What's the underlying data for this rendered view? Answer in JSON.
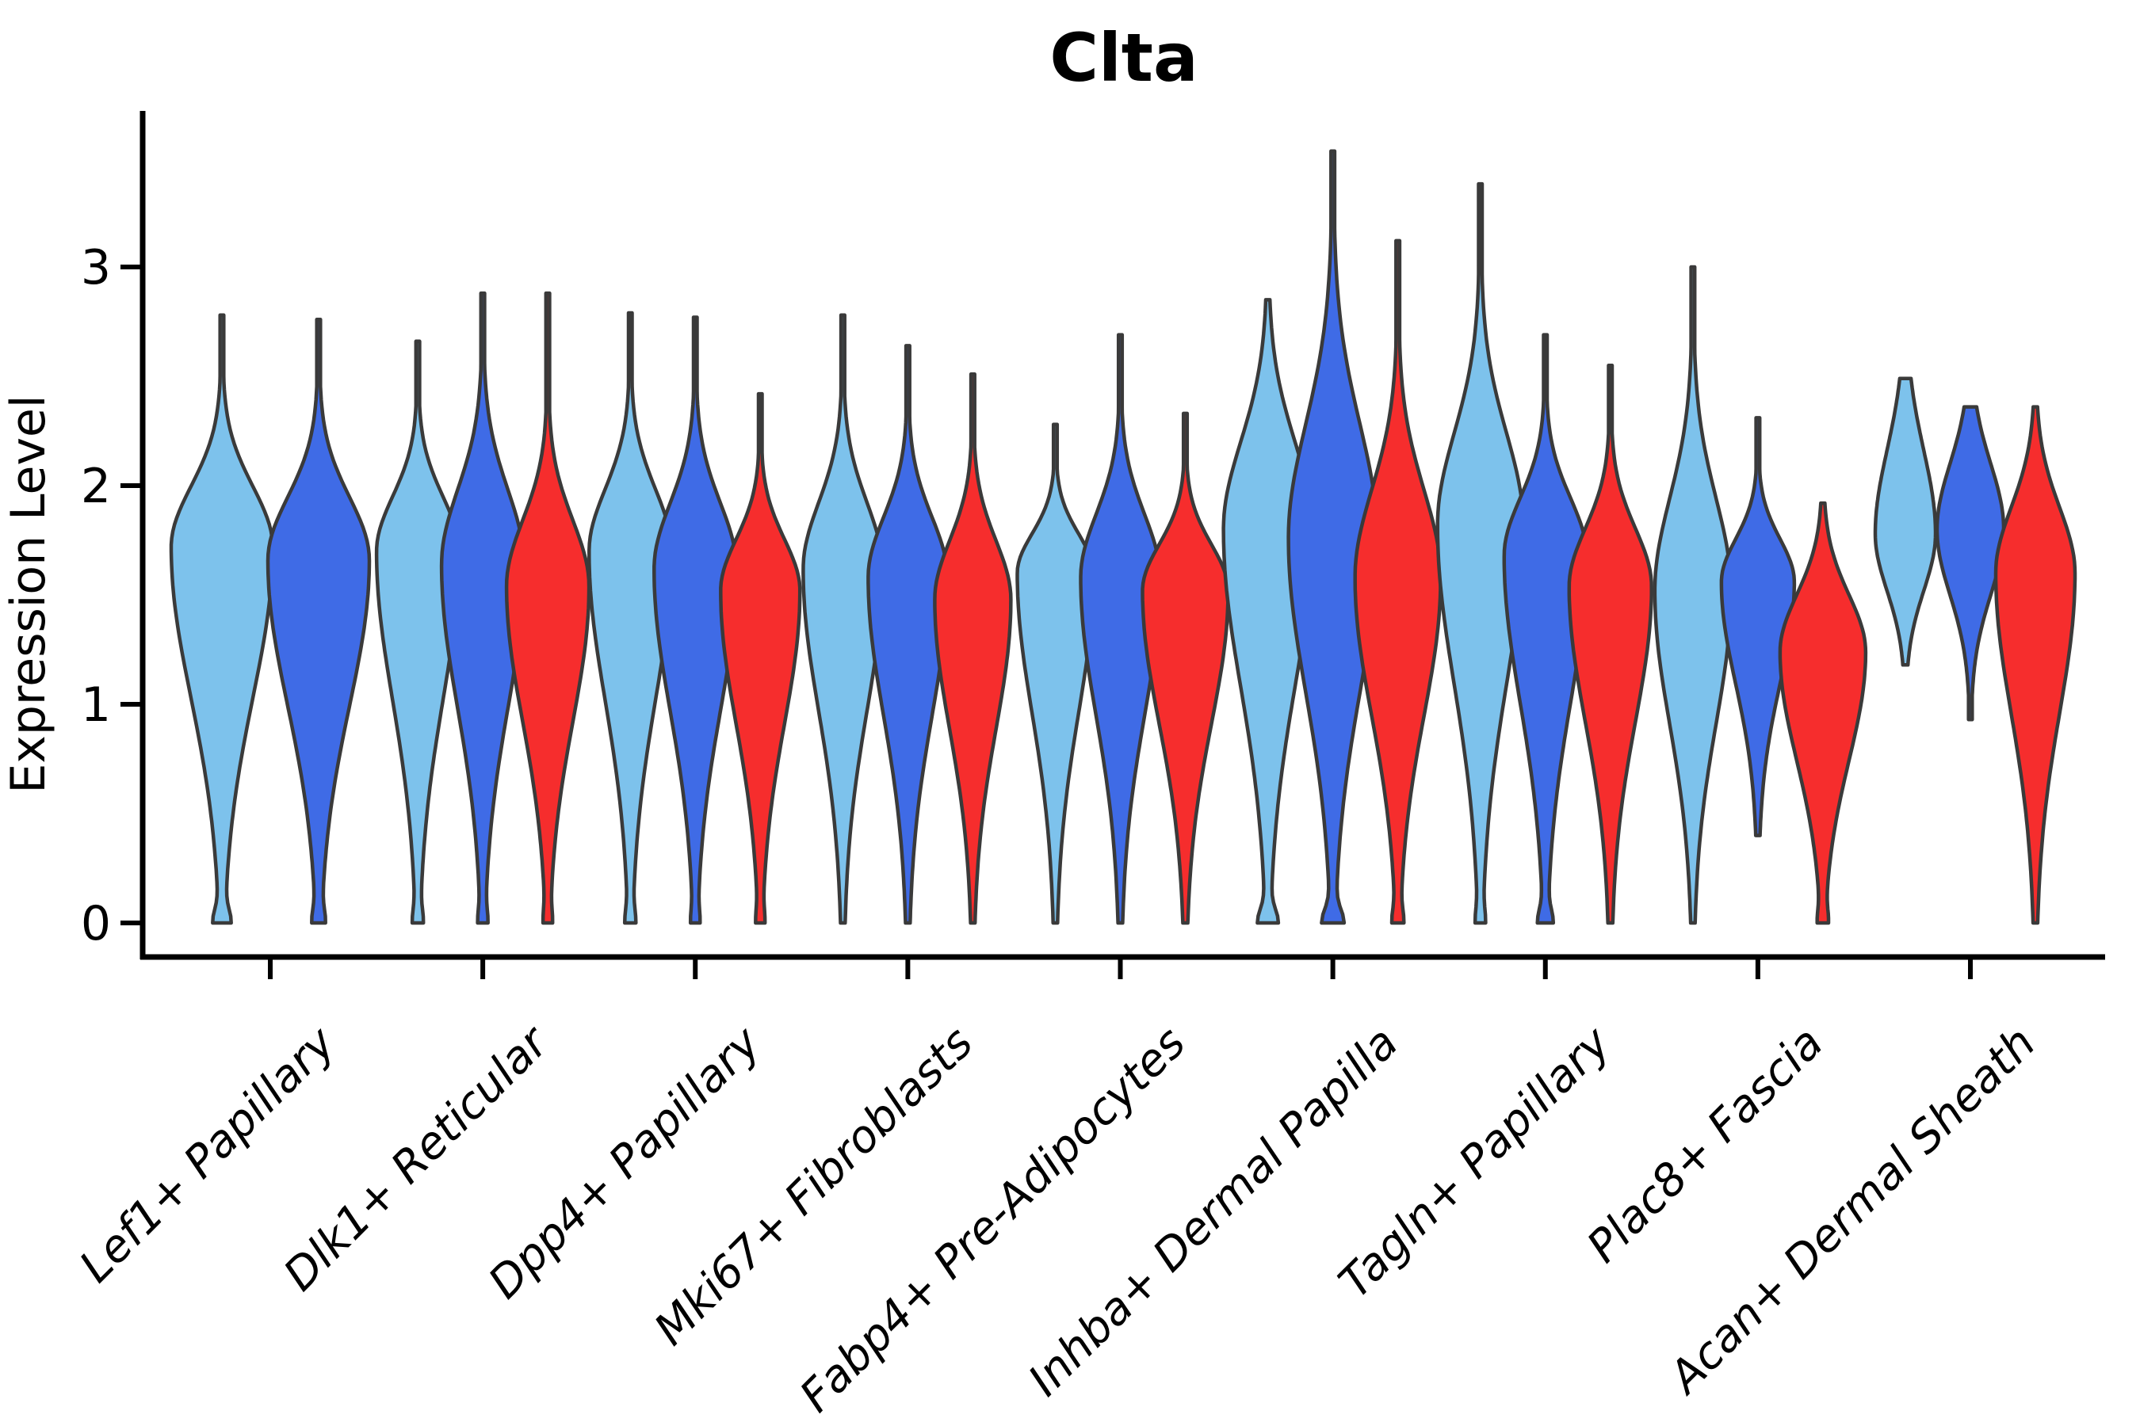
{
  "title": "Clta",
  "chart_data": {
    "type": "violin",
    "title": "Clta",
    "xlabel": "",
    "ylabel": "Expression Level",
    "yticks": [
      0,
      1,
      2,
      3
    ],
    "ylim": [
      -0.16,
      3.72
    ],
    "grid": false,
    "legend_position": "none",
    "background": "#FFFFFF",
    "outline_color": "#3A3A3A",
    "series_colors": {
      "skyblue": "#7DC2EC",
      "royalblue": "#3F6BE6",
      "red": "#F62D2D"
    },
    "categories": [
      "Lef1+ Papillary",
      "Dlk1+ Reticular",
      "Dpp4+ Papillary",
      "Mki67+ Fibroblasts",
      "Fabp4+ Pre-Adipocytes",
      "Inhba+ Dermal Papilla",
      "Tagln+ Papillary",
      "Plac8+ Fascia",
      "Acan+ Dermal Sheath"
    ],
    "violins": [
      {
        "cat": 0,
        "slot": 0,
        "series": "skyblue",
        "min": 0,
        "max": 2.78,
        "peak": 1.72,
        "halfwidth": 64,
        "zero_bump": 8
      },
      {
        "cat": 0,
        "slot": 1,
        "series": "royalblue",
        "min": 0,
        "max": 2.76,
        "peak": 1.66,
        "halfwidth": 64,
        "zero_bump": 5
      },
      {
        "cat": 1,
        "slot": 0,
        "series": "skyblue",
        "min": 0,
        "max": 2.66,
        "peak": 1.7,
        "halfwidth": 52,
        "zero_bump": 4
      },
      {
        "cat": 1,
        "slot": 1,
        "series": "royalblue",
        "min": 0,
        "max": 2.88,
        "peak": 1.64,
        "halfwidth": 52,
        "zero_bump": 3.5,
        "su": 0.34
      },
      {
        "cat": 1,
        "slot": 2,
        "series": "red",
        "min": 0,
        "max": 2.88,
        "peak": 1.54,
        "halfwidth": 52,
        "zero_bump": 3,
        "su": 0.3
      },
      {
        "cat": 2,
        "slot": 0,
        "series": "skyblue",
        "min": 0,
        "max": 2.79,
        "peak": 1.7,
        "halfwidth": 52,
        "zero_bump": 4
      },
      {
        "cat": 2,
        "slot": 1,
        "series": "royalblue",
        "min": 0,
        "max": 2.77,
        "peak": 1.62,
        "halfwidth": 52,
        "zero_bump": 3
      },
      {
        "cat": 2,
        "slot": 2,
        "series": "red",
        "min": 0,
        "max": 2.42,
        "peak": 1.52,
        "halfwidth": 50,
        "zero_bump": 3
      },
      {
        "cat": 3,
        "slot": 0,
        "series": "skyblue",
        "min": 0,
        "max": 2.78,
        "peak": 1.62,
        "halfwidth": 50,
        "zero_bump": 0
      },
      {
        "cat": 3,
        "slot": 1,
        "series": "royalblue",
        "min": 0,
        "max": 2.64,
        "peak": 1.58,
        "halfwidth": 50,
        "zero_bump": 0
      },
      {
        "cat": 3,
        "slot": 2,
        "series": "red",
        "min": 0,
        "max": 2.51,
        "peak": 1.48,
        "halfwidth": 48,
        "zero_bump": 0
      },
      {
        "cat": 4,
        "slot": 0,
        "series": "skyblue",
        "min": 0,
        "max": 2.28,
        "peak": 1.6,
        "halfwidth": 48,
        "zero_bump": 0
      },
      {
        "cat": 4,
        "slot": 1,
        "series": "royalblue",
        "min": 0,
        "max": 2.69,
        "peak": 1.58,
        "halfwidth": 50,
        "zero_bump": 0
      },
      {
        "cat": 4,
        "slot": 2,
        "series": "red",
        "min": 0,
        "max": 2.33,
        "peak": 1.52,
        "halfwidth": 54,
        "zero_bump": 0
      },
      {
        "cat": 5,
        "slot": 0,
        "series": "skyblue",
        "min": 0,
        "max": 2.85,
        "peak": 1.8,
        "halfwidth": 56,
        "zero_bump": 10,
        "su": 0.4
      },
      {
        "cat": 5,
        "slot": 1,
        "series": "royalblue",
        "min": 0,
        "max": 3.53,
        "peak": 1.76,
        "halfwidth": 56,
        "zero_bump": 11,
        "su": 0.52
      },
      {
        "cat": 5,
        "slot": 2,
        "series": "red",
        "min": 0,
        "max": 3.12,
        "peak": 1.58,
        "halfwidth": 54,
        "zero_bump": 4.5,
        "su": 0.4
      },
      {
        "cat": 6,
        "slot": 0,
        "series": "skyblue",
        "min": 0,
        "max": 3.38,
        "peak": 1.82,
        "halfwidth": 54,
        "zero_bump": 3.5,
        "su": 0.42
      },
      {
        "cat": 6,
        "slot": 1,
        "series": "royalblue",
        "min": 0,
        "max": 2.69,
        "peak": 1.68,
        "halfwidth": 52,
        "zero_bump": 7
      },
      {
        "cat": 6,
        "slot": 2,
        "series": "red",
        "min": 0,
        "max": 2.55,
        "peak": 1.54,
        "halfwidth": 52,
        "zero_bump": 0
      },
      {
        "cat": 7,
        "slot": 0,
        "series": "skyblue",
        "min": 0,
        "max": 3.0,
        "peak": 1.52,
        "halfwidth": 48,
        "zero_bump": 0,
        "su": 0.42
      },
      {
        "cat": 7,
        "slot": 1,
        "series": "royalblue",
        "min": 0.4,
        "max": 2.31,
        "peak": 1.56,
        "halfwidth": 46,
        "zero_bump": 0
      },
      {
        "cat": 7,
        "slot": 2,
        "series": "red",
        "min": 0,
        "max": 1.92,
        "peak": 1.24,
        "halfwidth": 54,
        "zero_bump": 4,
        "su": 0.26
      },
      {
        "cat": 8,
        "slot": 0,
        "series": "skyblue",
        "min": 1.18,
        "max": 2.49,
        "peak": 1.78,
        "halfwidth": 38,
        "zero_bump": 0,
        "su": 0.38,
        "sl": 0.26
      },
      {
        "cat": 8,
        "slot": 1,
        "series": "royalblue",
        "min": 0.93,
        "max": 2.36,
        "peak": 1.8,
        "halfwidth": 42,
        "zero_bump": 0,
        "su": 0.3,
        "sl": 0.3
      },
      {
        "cat": 8,
        "slot": 2,
        "series": "red",
        "min": 0,
        "max": 2.36,
        "peak": 1.6,
        "halfwidth": 50,
        "zero_bump": 0,
        "su": 0.3
      }
    ]
  }
}
